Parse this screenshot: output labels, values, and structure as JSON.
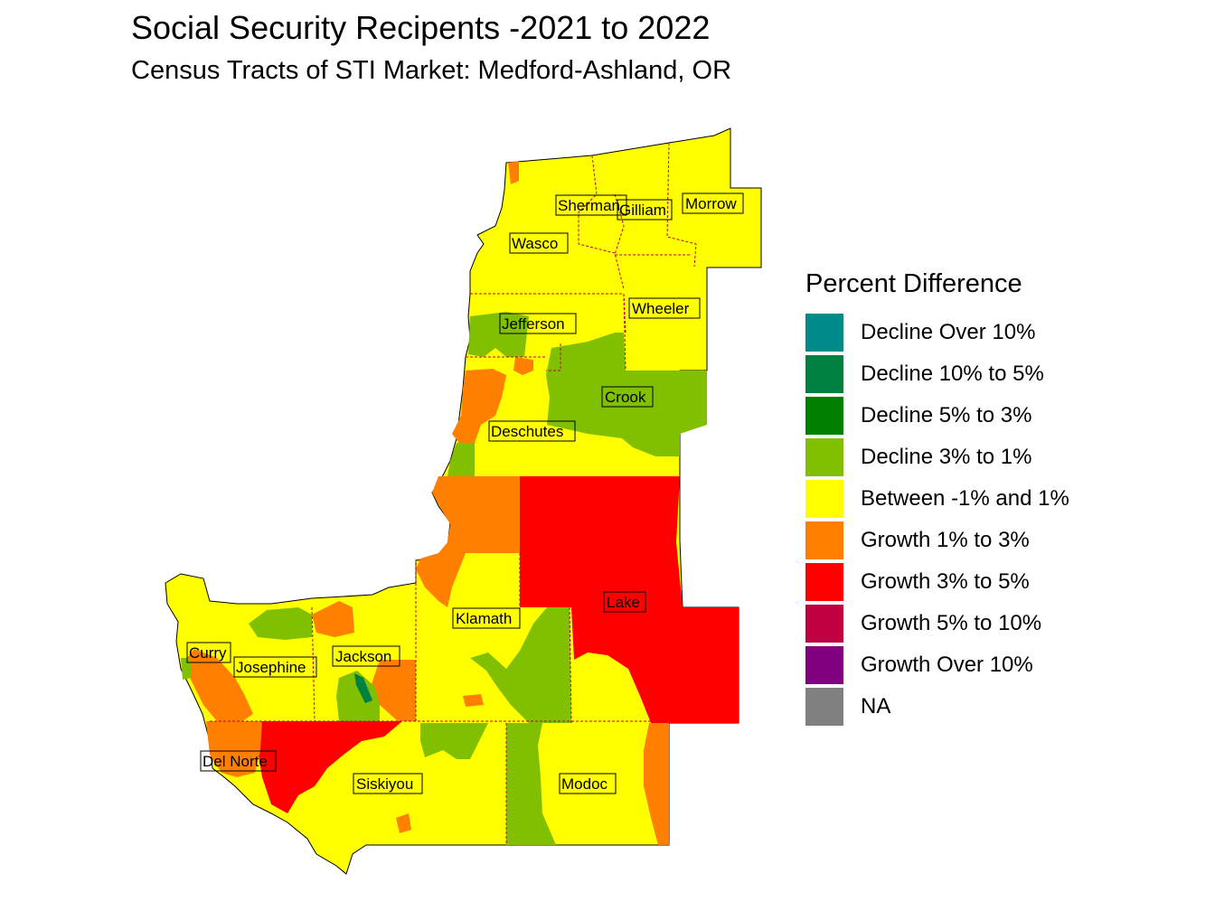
{
  "title": "Social Security Recipents -2021 to 2022",
  "subtitle": "Census Tracts of STI Market: Medford-Ashland, OR",
  "legend": {
    "title": "Percent Difference",
    "items": [
      {
        "label": "Decline Over 10%",
        "color": "#008B8B"
      },
      {
        "label": "Decline 10% to 5%",
        "color": "#008040"
      },
      {
        "label": "Decline 5% to 3%",
        "color": "#008000"
      },
      {
        "label": "Decline 3% to 1%",
        "color": "#80C000"
      },
      {
        "label": "Between -1% and 1%",
        "color": "#FFFF00"
      },
      {
        "label": "Growth 1% to 3%",
        "color": "#FF8000"
      },
      {
        "label": "Growth 3% to 5%",
        "color": "#FF0000"
      },
      {
        "label": "Growth 5% to 10%",
        "color": "#C00040"
      },
      {
        "label": "Growth Over 10%",
        "color": "#800080"
      },
      {
        "label": "NA",
        "color": "#808080"
      }
    ]
  },
  "counties": {
    "sherman": "Sherman",
    "gilliam": "Gilliam",
    "morrow": "Morrow",
    "wasco": "Wasco",
    "wheeler": "Wheeler",
    "jefferson": "Jefferson",
    "crook": "Crook",
    "deschutes": "Deschutes",
    "lake": "Lake",
    "klamath": "Klamath",
    "curry": "Curry",
    "josephine": "Josephine",
    "jackson": "Jackson",
    "del_norte": "Del Norte",
    "siskiyou": "Siskiyou",
    "modoc": "Modoc"
  }
}
